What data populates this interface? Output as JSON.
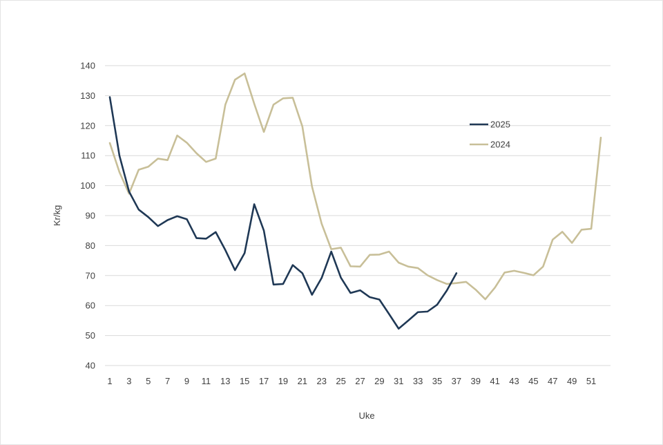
{
  "chart_data": {
    "type": "line",
    "title": "",
    "xlabel": "Uke",
    "ylabel": "Kr/kg",
    "ylim": [
      40,
      140
    ],
    "yticks": [
      40,
      50,
      60,
      70,
      80,
      90,
      100,
      110,
      120,
      130,
      140
    ],
    "xlim": [
      1,
      52
    ],
    "xticks": [
      1,
      3,
      5,
      7,
      9,
      11,
      13,
      15,
      17,
      19,
      21,
      23,
      25,
      27,
      29,
      31,
      33,
      35,
      37,
      39,
      41,
      43,
      45,
      47,
      49,
      51
    ],
    "grid": true,
    "legend_position": "right",
    "series": [
      {
        "name": "2025",
        "color": "#1f3855",
        "x": [
          1,
          2,
          3,
          4,
          5,
          6,
          7,
          8,
          9,
          10,
          11,
          12,
          13,
          14,
          15,
          16,
          17,
          18,
          19,
          20,
          21,
          22,
          23,
          24,
          25,
          26,
          27,
          28,
          29,
          30,
          31,
          32,
          33,
          34,
          35,
          36,
          37
        ],
        "values": [
          129.5,
          110,
          98,
          92,
          89.5,
          86.5,
          88.5,
          89.8,
          88.8,
          82.5,
          82.3,
          84.5,
          78.5,
          71.8,
          77.5,
          93.8,
          85,
          67,
          67.2,
          73.5,
          70.8,
          63.6,
          69.2,
          78,
          69.3,
          64.2,
          65.1,
          62.8,
          62,
          57.2,
          52.3,
          55,
          57.8,
          58,
          60.3,
          65,
          70.8
        ]
      },
      {
        "name": "2024",
        "color": "#c8bf98",
        "x": [
          1,
          2,
          3,
          4,
          5,
          6,
          7,
          8,
          9,
          10,
          11,
          12,
          13,
          14,
          15,
          16,
          17,
          18,
          19,
          20,
          21,
          22,
          23,
          24,
          25,
          26,
          27,
          28,
          29,
          30,
          31,
          32,
          33,
          34,
          35,
          36,
          37,
          38,
          39,
          40,
          41,
          42,
          43,
          44,
          45,
          46,
          47,
          48,
          49,
          50,
          51,
          52
        ],
        "values": [
          114.2,
          104.5,
          97.3,
          105.3,
          106.3,
          109,
          108.5,
          116.7,
          114.3,
          110.8,
          107.9,
          109,
          127,
          135.3,
          137.4,
          127.3,
          117.9,
          127,
          129.1,
          129.3,
          119.7,
          99.7,
          87.3,
          78.8,
          79.3,
          73.1,
          73,
          76.9,
          77,
          78,
          74.3,
          73,
          72.5,
          70.1,
          68.5,
          67.2,
          67.5,
          67.9,
          65.3,
          62.1,
          66,
          71,
          71.6,
          70.9,
          70.1,
          73,
          82,
          84.6,
          80.9,
          85.3,
          85.6,
          116
        ]
      }
    ]
  }
}
